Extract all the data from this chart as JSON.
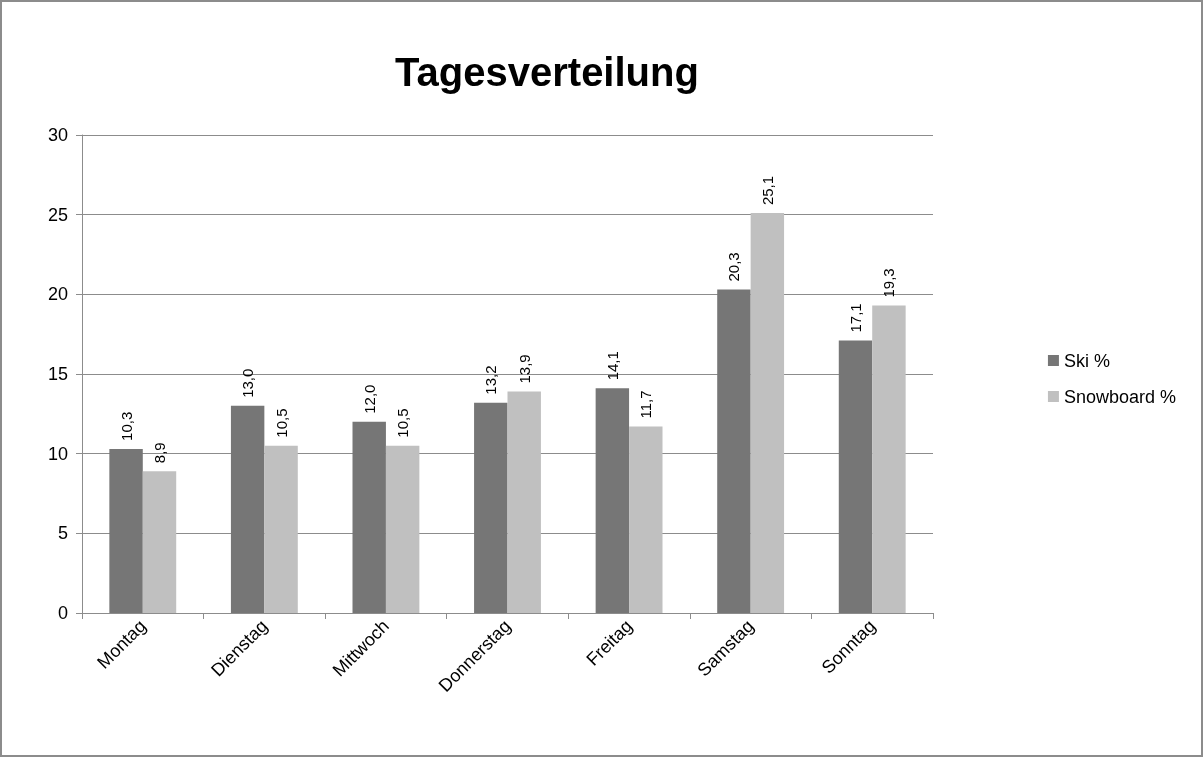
{
  "chart_data": {
    "type": "bar",
    "title": "Tagesverteilung",
    "categories": [
      "Montag",
      "Dienstag",
      "Mittwoch",
      "Donnerstag",
      "Freitag",
      "Samstag",
      "Sonntag"
    ],
    "series": [
      {
        "name": "Ski %",
        "color": "#767676",
        "values": [
          10.3,
          13.0,
          12.0,
          13.2,
          14.1,
          20.3,
          17.1
        ],
        "value_labels": [
          "10,3",
          "13,0",
          "12,0",
          "13,2",
          "14,1",
          "20,3",
          "17,1"
        ]
      },
      {
        "name": "Snowboard %",
        "color": "#c0c0c0",
        "values": [
          8.9,
          10.5,
          10.5,
          13.9,
          11.7,
          25.1,
          19.3
        ],
        "value_labels": [
          "8,9",
          "10,5",
          "10,5",
          "13,9",
          "11,7",
          "25,1",
          "19,3"
        ]
      }
    ],
    "ylim": [
      0,
      30
    ],
    "yticks": [
      0,
      5,
      10,
      15,
      20,
      25,
      30
    ],
    "grid": "y",
    "legend": "right"
  }
}
